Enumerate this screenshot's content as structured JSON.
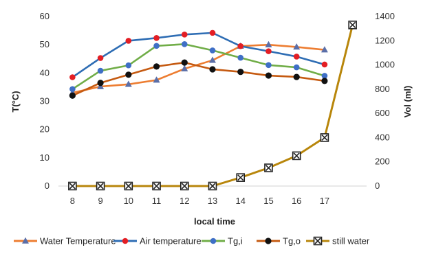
{
  "chart_data": {
    "type": "line",
    "title": "",
    "xlabel": "local time",
    "ylabel_left": "T(°C)",
    "ylabel_right": "Vol (ml)",
    "x_ticks": [
      8,
      9,
      10,
      11,
      12,
      13,
      14,
      15,
      16,
      17
    ],
    "ylim_left": [
      0,
      60
    ],
    "yticks_left": [
      0,
      10,
      20,
      30,
      40,
      50,
      60
    ],
    "ylim_right": [
      0,
      1400
    ],
    "yticks_right": [
      0,
      200,
      400,
      600,
      800,
      1000,
      1200,
      1400
    ],
    "grid": false,
    "legend_position": "bottom",
    "series": [
      {
        "name": "Water Temperature",
        "axis": "left",
        "color": "#ED7D31",
        "marker": "triangle",
        "x": [
          8,
          9,
          10,
          11,
          12,
          13,
          14,
          15,
          16,
          17
        ],
        "values": [
          33,
          35.2,
          36,
          37.5,
          41.5,
          44.5,
          49.5,
          50,
          49.2,
          48.2
        ]
      },
      {
        "name": "Air temperature",
        "axis": "left",
        "color": "#2E6DB4",
        "marker": "circle-red",
        "x": [
          8,
          9,
          10,
          11,
          12,
          13,
          14,
          15,
          16,
          17
        ],
        "values": [
          38.5,
          45.3,
          51.4,
          52.4,
          53.6,
          54.2,
          49.5,
          47.7,
          45.8,
          43
        ]
      },
      {
        "name": "Tg,i",
        "axis": "left",
        "color": "#70AD47",
        "marker": "circle-blue",
        "x": [
          8,
          9,
          10,
          11,
          12,
          13,
          14,
          15,
          16,
          17
        ],
        "values": [
          34.3,
          40.8,
          42.7,
          49.6,
          50.2,
          48,
          45.4,
          42.8,
          42,
          39
        ]
      },
      {
        "name": "Tg,o",
        "axis": "left",
        "color": "#C55A11",
        "marker": "circle-black",
        "x": [
          8,
          9,
          10,
          11,
          12,
          13,
          14,
          15,
          16,
          17
        ],
        "values": [
          32,
          36.5,
          39.4,
          42.3,
          43.7,
          41.3,
          40.4,
          39.1,
          38.6,
          37.2
        ]
      },
      {
        "name": "still water",
        "axis": "right",
        "color": "#B8860B",
        "marker": "box-x",
        "x": [
          8,
          9,
          10,
          11,
          12,
          13,
          14,
          15,
          16,
          17,
          18
        ],
        "values": [
          0,
          0,
          0,
          0,
          0,
          0,
          70,
          150,
          250,
          400,
          1330
        ]
      }
    ]
  }
}
